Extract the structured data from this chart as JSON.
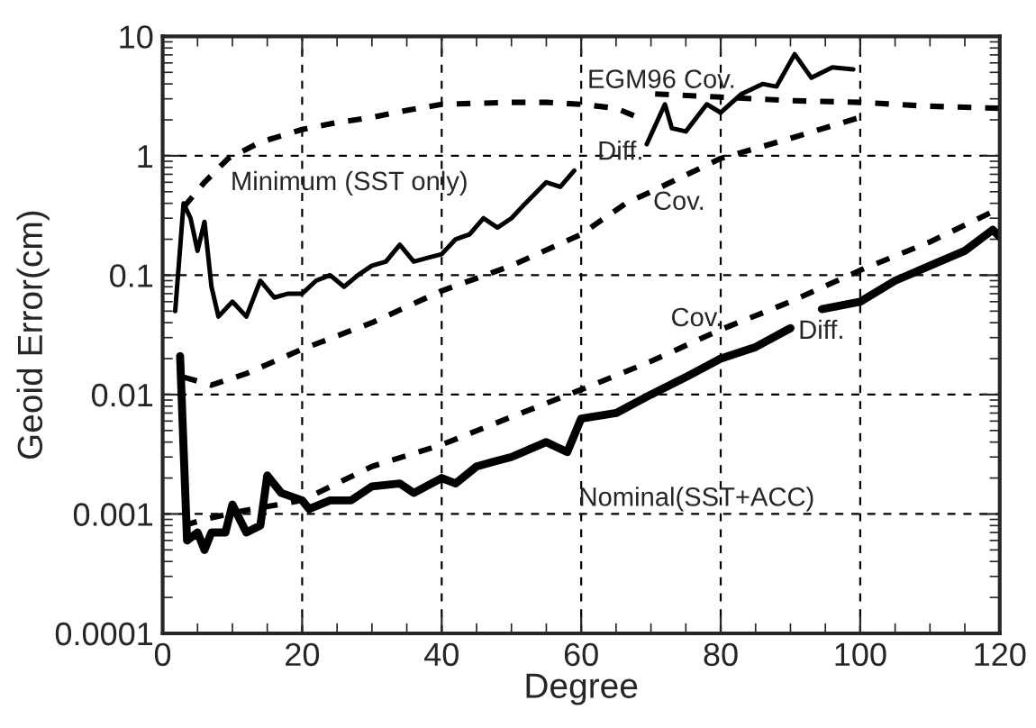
{
  "chart_data": {
    "type": "line",
    "xlabel": "Degree",
    "ylabel": "Geoid Error(cm)",
    "log": "y",
    "grid": true,
    "xlim": [
      0,
      120
    ],
    "ylim": [
      0.0001,
      10
    ],
    "xticks": [
      0,
      20,
      40,
      60,
      80,
      100,
      120
    ],
    "yticks": [
      0.0001,
      0.001,
      0.01,
      0.1,
      1,
      10
    ],
    "series": [
      {
        "color": "#000000",
        "line_style": "dashed",
        "x": [
          3,
          6,
          9.4,
          14,
          20,
          25,
          30,
          35,
          40,
          50,
          55,
          60,
          65,
          69,
          null,
          70.6,
          75,
          80,
          90,
          100,
          110,
          120
        ],
        "values": [
          0.37,
          0.6,
          0.95,
          1.3,
          1.66,
          1.9,
          2.1,
          2.4,
          2.7,
          2.8,
          2.8,
          2.7,
          2.5,
          2.0,
          null,
          3.3,
          3.2,
          3.1,
          2.9,
          2.8,
          2.6,
          2.5
        ]
      },
      {
        "color": "#000000",
        "line_style": "solid",
        "x": [
          1.8,
          3,
          4,
          5,
          6,
          7,
          8,
          10,
          12,
          14,
          16,
          18,
          20,
          22,
          24,
          26,
          28,
          30,
          32,
          34,
          36,
          38,
          40,
          42,
          44,
          46,
          48,
          50,
          52,
          55,
          57,
          59,
          null,
          69.4,
          72,
          73,
          75,
          78,
          80,
          83,
          86,
          88,
          90.6,
          93,
          96,
          99
        ],
        "values": [
          0.05,
          0.4,
          0.3,
          0.16,
          0.28,
          0.08,
          0.045,
          0.06,
          0.045,
          0.09,
          0.065,
          0.07,
          0.07,
          0.09,
          0.1,
          0.08,
          0.1,
          0.12,
          0.13,
          0.18,
          0.13,
          0.14,
          0.15,
          0.2,
          0.22,
          0.3,
          0.25,
          0.3,
          0.4,
          0.6,
          0.55,
          0.75,
          null,
          1.25,
          2.7,
          1.7,
          1.6,
          2.7,
          2.3,
          3.3,
          4,
          3.8,
          7.1,
          4.5,
          5.5,
          5.3
        ]
      },
      {
        "color": "#000000",
        "line_style": "dashed",
        "x": [
          3,
          7,
          12,
          20,
          30,
          40,
          50,
          60,
          66.4,
          70,
          80,
          90,
          100
        ],
        "values": [
          0.014,
          0.012,
          0.015,
          0.024,
          0.04,
          0.074,
          0.12,
          0.22,
          0.4,
          0.5,
          0.95,
          1.4,
          2.1
        ]
      },
      {
        "color": "#000000",
        "line_style": "dashed",
        "x": [
          3,
          6,
          11,
          20,
          30,
          40,
          50,
          60,
          70,
          80,
          90,
          100,
          110,
          119
        ],
        "values": [
          0.0008,
          0.0009,
          0.00105,
          0.0013,
          0.0025,
          0.0038,
          0.0065,
          0.011,
          0.019,
          0.035,
          0.06,
          0.11,
          0.19,
          0.34
        ]
      },
      {
        "color": "#000000",
        "line_style": "solid",
        "x": [
          2.5,
          3.5,
          5,
          6,
          7,
          9,
          10,
          12,
          14,
          15,
          17,
          20,
          21,
          24,
          27,
          30,
          34,
          36,
          40,
          42,
          45,
          48,
          50,
          55,
          58,
          60,
          65,
          70,
          75,
          80,
          85,
          90,
          null,
          94.5,
          100,
          105,
          110,
          115,
          119,
          120
        ],
        "values": [
          0.021,
          0.0006,
          0.0007,
          0.0005,
          0.0007,
          0.0007,
          0.0012,
          0.0007,
          0.0008,
          0.0021,
          0.0015,
          0.0013,
          0.0011,
          0.0013,
          0.0013,
          0.0017,
          0.0018,
          0.0015,
          0.002,
          0.0018,
          0.0025,
          0.0028,
          0.003,
          0.004,
          0.0033,
          0.0063,
          0.007,
          0.01,
          0.014,
          0.02,
          0.025,
          0.036,
          null,
          0.052,
          0.06,
          0.09,
          0.12,
          0.16,
          0.24,
          0.21
        ]
      }
    ],
    "annotations": [
      "EGM96 Cov.",
      "Diff.",
      "Minimum (SST only)",
      "Cov.",
      "Cov.",
      "Diff.",
      "Nominal(SST+ACC)"
    ]
  }
}
